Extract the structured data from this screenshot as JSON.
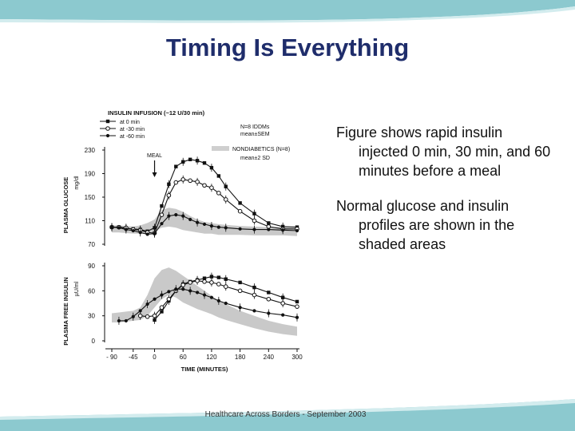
{
  "slide": {
    "title": "Timing Is Everything",
    "bullets": [
      "Figure shows rapid insulin injected 0 min, 30 min, and 60 minutes before a meal",
      "Normal glucose and insulin profiles are shown in the shaded areas"
    ],
    "footer": "Healthcare Across Borders  -  September 2003",
    "colors": {
      "title": "#1f2d6b",
      "banner": "#8cc9cf",
      "banner_light": "#d3ecee"
    }
  },
  "chart_data": {
    "type": "line",
    "header": "INSULIN INFUSION (~12 U/30 min)",
    "legend": [
      "at 0 min",
      "at -30 min",
      "at -60 min"
    ],
    "note_n": "N=8 IDDMs",
    "note_mean": "mean±SEM",
    "shaded_label": "NONDIABETICS (N=8)",
    "shaded_mean": "mean±2 SD",
    "meal_label": "MEAL",
    "xlabel": "TIME (MINUTES)",
    "x": [
      -90,
      -75,
      -60,
      -45,
      -30,
      -15,
      0,
      15,
      30,
      45,
      60,
      75,
      90,
      105,
      120,
      135,
      150,
      180,
      210,
      240,
      270,
      300
    ],
    "xticks": [
      -90,
      -45,
      0,
      60,
      120,
      180,
      240,
      300
    ],
    "xtick_labels": [
      "- 90",
      "-45",
      "0",
      "60",
      "120",
      "180",
      "240",
      "300"
    ],
    "panels": [
      {
        "ylabel": "PLASMA GLUCOSE",
        "yunit": "mg/dl",
        "ylim": [
          70,
          230
        ],
        "yticks": [
          70,
          110,
          150,
          190,
          230
        ],
        "meal_arrow": true,
        "band": {
          "upper": [
            102,
            102,
            101,
            100,
            102,
            106,
            112,
            128,
            132,
            130,
            125,
            118,
            112,
            108,
            106,
            104,
            103,
            101,
            100,
            99,
            99,
            98
          ],
          "lower": [
            90,
            90,
            89,
            88,
            88,
            88,
            92,
            98,
            100,
            98,
            94,
            92,
            90,
            88,
            88,
            86,
            86,
            86,
            85,
            85,
            85,
            84
          ]
        },
        "series": [
          {
            "name": "at 0 min",
            "marker": "square",
            "values": [
              99,
              99,
              97,
              96,
              95,
              92,
              98,
              135,
              172,
              202,
              210,
              214,
              212,
              208,
              200,
              186,
              168,
              140,
              122,
              106,
              100,
              99
            ]
          },
          {
            "name": "at -30 min",
            "marker": "circle",
            "values": [
              99,
              99,
              98,
              95,
              94,
              90,
              89,
              120,
              153,
              175,
              180,
              178,
              176,
              170,
              166,
              157,
              146,
              126,
              110,
              100,
              96,
              96
            ]
          },
          {
            "name": "at -60 min",
            "marker": "dot",
            "values": [
              99,
              98,
              95,
              93,
              90,
              87,
              88,
              105,
              118,
              120,
              118,
              112,
              107,
              104,
              101,
              99,
              98,
              96,
              95,
              95,
              94,
              93
            ]
          }
        ]
      },
      {
        "ylabel": "PLASMA FREE INSULIN",
        "yunit": "µU/ml",
        "ylim": [
          0,
          90
        ],
        "yticks": [
          0,
          30,
          60,
          90
        ],
        "meal_arrow": false,
        "band": {
          "upper": [
            33,
            34,
            35,
            36,
            40,
            55,
            75,
            85,
            88,
            84,
            78,
            72,
            66,
            60,
            54,
            48,
            44,
            36,
            30,
            24,
            20,
            17
          ],
          "lower": [
            22,
            22,
            23,
            24,
            25,
            30,
            40,
            50,
            55,
            52,
            46,
            42,
            38,
            35,
            32,
            28,
            25,
            20,
            15,
            11,
            8,
            6
          ]
        },
        "series": [
          {
            "name": "at 0 min",
            "marker": "square",
            "values": [
              null,
              null,
              null,
              null,
              null,
              null,
              25,
              35,
              48,
              60,
              68,
              71,
              73,
              75,
              77,
              76,
              74,
              70,
              64,
              58,
              52,
              47
            ]
          },
          {
            "name": "at -30 min",
            "marker": "circle",
            "values": [
              null,
              null,
              null,
              null,
              30,
              29,
              30,
              40,
              50,
              60,
              67,
              70,
              72,
              71,
              70,
              68,
              65,
              60,
              55,
              50,
              45,
              41
            ]
          },
          {
            "name": "at -60 min",
            "marker": "dot",
            "values": [
              null,
              24,
              24,
              29,
              36,
              44,
              50,
              55,
              59,
              62,
              62,
              60,
              58,
              55,
              52,
              48,
              45,
              40,
              36,
              33,
              31,
              28
            ]
          }
        ]
      }
    ]
  }
}
